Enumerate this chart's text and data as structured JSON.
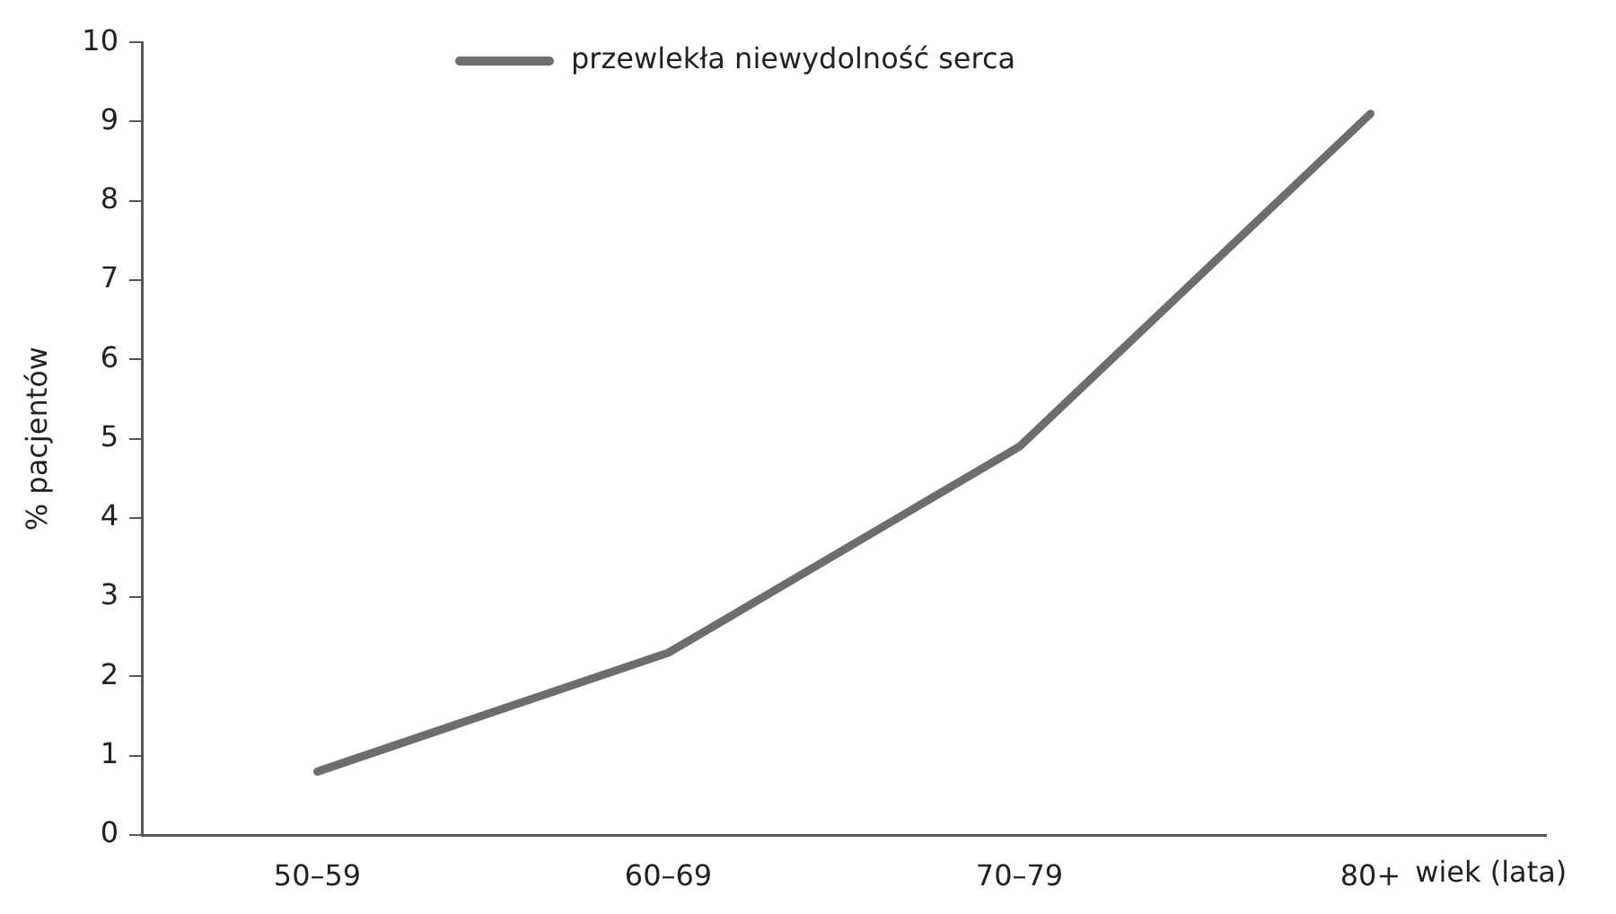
{
  "chart_data": {
    "type": "line",
    "categories": [
      "50–59",
      "60–69",
      "70–79",
      "80+"
    ],
    "series": [
      {
        "name": "przewlekła niewydolność serca",
        "color": "#6d6d6d",
        "values": [
          0.8,
          2.3,
          4.9,
          9.1
        ]
      }
    ],
    "xlabel": "wiek (lata)",
    "ylabel": "% pacjentów",
    "ylim": [
      0,
      10
    ],
    "yticks": [
      0,
      1,
      2,
      3,
      4,
      5,
      6,
      7,
      8,
      9,
      10
    ],
    "grid": false,
    "legend": "top",
    "marker": "none",
    "line_style": "solid"
  }
}
